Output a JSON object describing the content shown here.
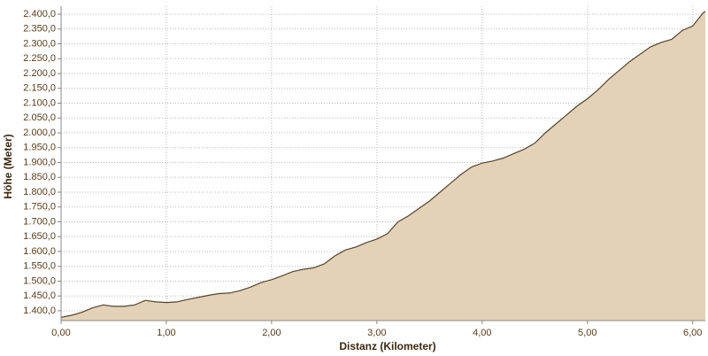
{
  "chart_data": {
    "type": "area",
    "x_label": "Distanz (Kilometer)",
    "y_label": "Höhe (Meter)",
    "x": [
      0,
      0.1,
      0.2,
      0.3,
      0.4,
      0.5,
      0.6,
      0.7,
      0.8,
      0.9,
      1.0,
      1.1,
      1.2,
      1.3,
      1.4,
      1.5,
      1.6,
      1.7,
      1.8,
      1.9,
      2.0,
      2.1,
      2.2,
      2.3,
      2.4,
      2.5,
      2.6,
      2.7,
      2.8,
      2.9,
      3.0,
      3.1,
      3.2,
      3.3,
      3.4,
      3.5,
      3.6,
      3.7,
      3.8,
      3.9,
      4.0,
      4.1,
      4.2,
      4.3,
      4.4,
      4.5,
      4.6,
      4.7,
      4.8,
      4.9,
      5.0,
      5.1,
      5.2,
      5.3,
      5.4,
      5.5,
      5.6,
      5.7,
      5.8,
      5.9,
      6.0,
      6.1,
      6.12
    ],
    "values": [
      1378,
      1385,
      1395,
      1410,
      1420,
      1415,
      1415,
      1420,
      1435,
      1430,
      1428,
      1430,
      1438,
      1445,
      1452,
      1458,
      1460,
      1468,
      1480,
      1495,
      1505,
      1518,
      1532,
      1540,
      1545,
      1558,
      1585,
      1605,
      1615,
      1630,
      1642,
      1660,
      1700,
      1720,
      1745,
      1770,
      1800,
      1830,
      1860,
      1885,
      1898,
      1905,
      1915,
      1930,
      1945,
      1965,
      2000,
      2030,
      2060,
      2090,
      2115,
      2145,
      2180,
      2210,
      2240,
      2265,
      2290,
      2305,
      2315,
      2345,
      2360,
      2405,
      2410
    ],
    "color": "#e3d2b8",
    "line_color": "#5b4324",
    "xlim": [
      0,
      6.12
    ],
    "ylim": [
      1367,
      2427
    ],
    "xticks": [
      {
        "value": 0,
        "label": "0,00"
      },
      {
        "value": 1,
        "label": "1,00"
      },
      {
        "value": 2,
        "label": "2,00"
      },
      {
        "value": 3,
        "label": "3,00"
      },
      {
        "value": 4,
        "label": "4,00"
      },
      {
        "value": 5,
        "label": "5,00"
      },
      {
        "value": 6,
        "label": "6,00"
      }
    ],
    "yticks": [
      {
        "value": 1400,
        "label": "1.400,0"
      },
      {
        "value": 1450,
        "label": "1.450,0"
      },
      {
        "value": 1500,
        "label": "1.500,0"
      },
      {
        "value": 1550,
        "label": "1.550,0"
      },
      {
        "value": 1600,
        "label": "1.600,0"
      },
      {
        "value": 1650,
        "label": "1.650,0"
      },
      {
        "value": 1700,
        "label": "1.700,0"
      },
      {
        "value": 1750,
        "label": "1.750,0"
      },
      {
        "value": 1800,
        "label": "1.800,0"
      },
      {
        "value": 1850,
        "label": "1.850,0"
      },
      {
        "value": 1900,
        "label": "1.900,0"
      },
      {
        "value": 1950,
        "label": "1.950,0"
      },
      {
        "value": 2000,
        "label": "2.000,0"
      },
      {
        "value": 2050,
        "label": "2.050,0"
      },
      {
        "value": 2100,
        "label": "2.100,0"
      },
      {
        "value": 2150,
        "label": "2.150,0"
      },
      {
        "value": 2200,
        "label": "2.200,0"
      },
      {
        "value": 2250,
        "label": "2.250,0"
      },
      {
        "value": 2300,
        "label": "2.300,0"
      },
      {
        "value": 2350,
        "label": "2.350,0"
      },
      {
        "value": 2400,
        "label": "2.400,0"
      }
    ],
    "grid": true
  }
}
